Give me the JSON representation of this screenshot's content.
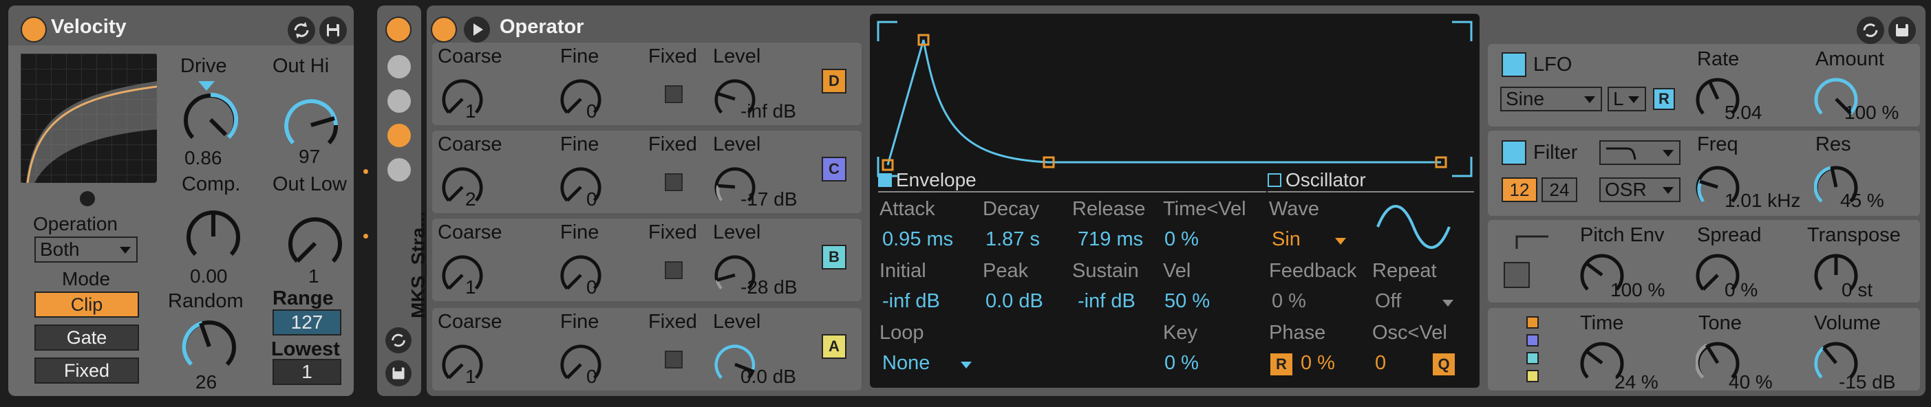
{
  "velocity": {
    "title": "Velocity",
    "drive_label": "Drive",
    "drive_value": "0.86",
    "out_hi_label": "Out Hi",
    "out_hi_value": "97",
    "comp_label": "Comp.",
    "comp_value": "0.00",
    "out_low_label": "Out Low",
    "out_low_value": "1",
    "operation_label": "Operation",
    "operation_value": "Both",
    "mode_label": "Mode",
    "mode_clip": "Clip",
    "mode_gate": "Gate",
    "mode_fixed": "Fixed",
    "random_label": "Random",
    "random_value": "26",
    "range_label": "Range",
    "range_value": "127",
    "lowest_label": "Lowest",
    "lowest_value": "1"
  },
  "rack": {
    "name": "MKS_Stra..."
  },
  "operator": {
    "title": "Operator",
    "oscillators": [
      {
        "coarse_label": "Coarse",
        "coarse": "1",
        "fine_label": "Fine",
        "fine": "0",
        "fixed_label": "Fixed",
        "level_label": "Level",
        "level": "-inf dB",
        "tag": "D",
        "tag_color": "#e9952d"
      },
      {
        "coarse_label": "Coarse",
        "coarse": "2",
        "fine_label": "Fine",
        "fine": "0",
        "fixed_label": "Fixed",
        "level_label": "Level",
        "level": "-17 dB",
        "tag": "C",
        "tag_color": "#7b7de6"
      },
      {
        "coarse_label": "Coarse",
        "coarse": "1",
        "fine_label": "Fine",
        "fine": "0",
        "fixed_label": "Fixed",
        "level_label": "Level",
        "level": "-28 dB",
        "tag": "B",
        "tag_color": "#6fd1d8"
      },
      {
        "coarse_label": "Coarse",
        "coarse": "1",
        "fine_label": "Fine",
        "fine": "0",
        "fixed_label": "Fixed",
        "level_label": "Level",
        "level": "0.0 dB",
        "tag": "A",
        "tag_color": "#e7dc6e"
      }
    ],
    "envelope": {
      "section_label": "Envelope",
      "attack_label": "Attack",
      "attack": "0.95 ms",
      "decay_label": "Decay",
      "decay": "1.87 s",
      "release_label": "Release",
      "release": "719 ms",
      "timevel_label": "Time<Vel",
      "timevel": "0 %",
      "initial_label": "Initial",
      "initial": "-inf dB",
      "peak_label": "Peak",
      "peak": "0.0 dB",
      "sustain_label": "Sustain",
      "sustain": "-inf dB",
      "vel_label": "Vel",
      "vel": "50 %",
      "loop_label": "Loop",
      "loop": "None",
      "key_label": "Key",
      "key": "0 %"
    },
    "oscillator": {
      "section_label": "Oscillator",
      "wave_label": "Wave",
      "wave": "Sin",
      "feedback_label": "Feedback",
      "feedback": "0 %",
      "repeat_label": "Repeat",
      "repeat": "Off",
      "phase_label": "Phase",
      "phase_r": "R",
      "phase": "0 %",
      "oscvel_label": "Osc<Vel",
      "oscvel": "0",
      "oscvel_q": "Q"
    },
    "lfo": {
      "label": "LFO",
      "wave": "Sine",
      "dest": "L",
      "retrig": "R",
      "rate_label": "Rate",
      "rate": "5.04",
      "amount_label": "Amount",
      "amount": "100 %"
    },
    "filter": {
      "label": "Filter",
      "slope_12": "12",
      "slope_24": "24",
      "osr": "OSR",
      "freq_label": "Freq",
      "freq": "1.01 kHz",
      "res_label": "Res",
      "res": "45 %"
    },
    "pitch": {
      "pitch_env_label": "Pitch Env",
      "pitch_env": "100 %",
      "spread_label": "Spread",
      "spread": "0 %",
      "transpose_label": "Transpose",
      "transpose": "0 st"
    },
    "global": {
      "time_label": "Time",
      "time": "24 %",
      "tone_label": "Tone",
      "tone": "40 %",
      "volume_label": "Volume",
      "volume": "-15 dB"
    }
  },
  "colors": {
    "accent": "#f0993a",
    "blue": "#5ec4ea",
    "panel": "#6b6b6b",
    "display": "#161616"
  }
}
